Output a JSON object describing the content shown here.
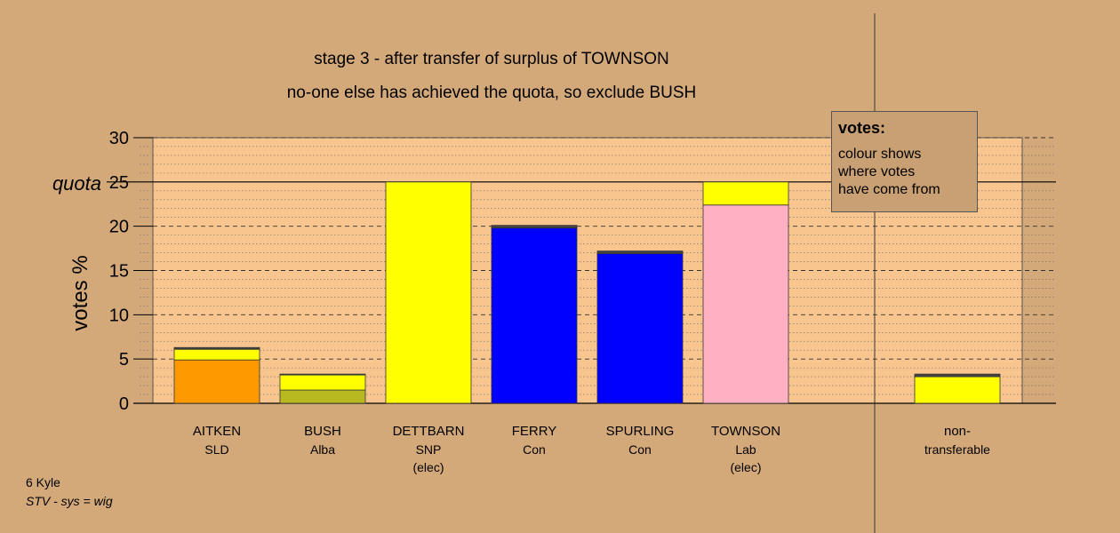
{
  "titles": {
    "line1": "stage 3 - after transfer of surplus of TOWNSON",
    "line2": "no-one else has achieved the quota, so exclude BUSH"
  },
  "legend": {
    "title": "votes:",
    "lines": [
      "colour shows",
      "where votes",
      "have come from"
    ]
  },
  "footer": {
    "line1": "6 Kyle",
    "line2": "STV - sys = wig"
  },
  "colors": {
    "background": "#D4A97A",
    "plot_area": "#F8C58F",
    "SLD": "#FF9900",
    "Alba": "#B8B820",
    "SNP": "#FFFF00",
    "Con": "#0000FF",
    "Lab": "#FFB0C2",
    "other": "#444444"
  },
  "chart_data": {
    "type": "bar",
    "stacked": true,
    "title": "stage 3 - after transfer of surplus of TOWNSON",
    "subtitle": "no-one else has achieved the quota, so exclude BUSH",
    "ylabel": "votes %",
    "ylim": [
      0,
      30
    ],
    "yticks": [
      0,
      5,
      10,
      15,
      20,
      25,
      30
    ],
    "quota": 25,
    "quota_label": "quota",
    "grid": true,
    "legend_position": "top-right",
    "categories": [
      {
        "name": "AITKEN",
        "party": "SLD",
        "note": ""
      },
      {
        "name": "BUSH",
        "party": "Alba",
        "note": ""
      },
      {
        "name": "DETTBARN",
        "party": "SNP",
        "note": "(elec)"
      },
      {
        "name": "FERRY",
        "party": "Con",
        "note": ""
      },
      {
        "name": "SPURLING",
        "party": "Con",
        "note": ""
      },
      {
        "name": "TOWNSON",
        "party": "Lab",
        "note": "(elec)"
      },
      {
        "name": "",
        "party": "",
        "note": ""
      },
      {
        "name": "non-",
        "party": "transferable",
        "note": ""
      }
    ],
    "bars": [
      {
        "segments": [
          {
            "color": "#FF9900",
            "value": 4.9
          },
          {
            "color": "#FFFF00",
            "value": 1.2
          },
          {
            "color": "#444444",
            "value": 0.2
          }
        ]
      },
      {
        "segments": [
          {
            "color": "#B8B820",
            "value": 1.5
          },
          {
            "color": "#FFFF00",
            "value": 1.7
          },
          {
            "color": "#444444",
            "value": 0.1
          }
        ]
      },
      {
        "segments": [
          {
            "color": "#FFFF00",
            "value": 25.0
          }
        ]
      },
      {
        "segments": [
          {
            "color": "#0000FF",
            "value": 19.8
          },
          {
            "color": "#444444",
            "value": 0.3
          }
        ]
      },
      {
        "segments": [
          {
            "color": "#0000FF",
            "value": 16.9
          },
          {
            "color": "#444444",
            "value": 0.3
          }
        ]
      },
      {
        "segments": [
          {
            "color": "#FFB0C2",
            "value": 22.4
          },
          {
            "color": "#FFFF00",
            "value": 2.6
          }
        ]
      },
      {
        "segments": []
      },
      {
        "segments": [
          {
            "color": "#FFFF00",
            "value": 3.0
          },
          {
            "color": "#444444",
            "value": 0.3
          }
        ]
      }
    ]
  }
}
